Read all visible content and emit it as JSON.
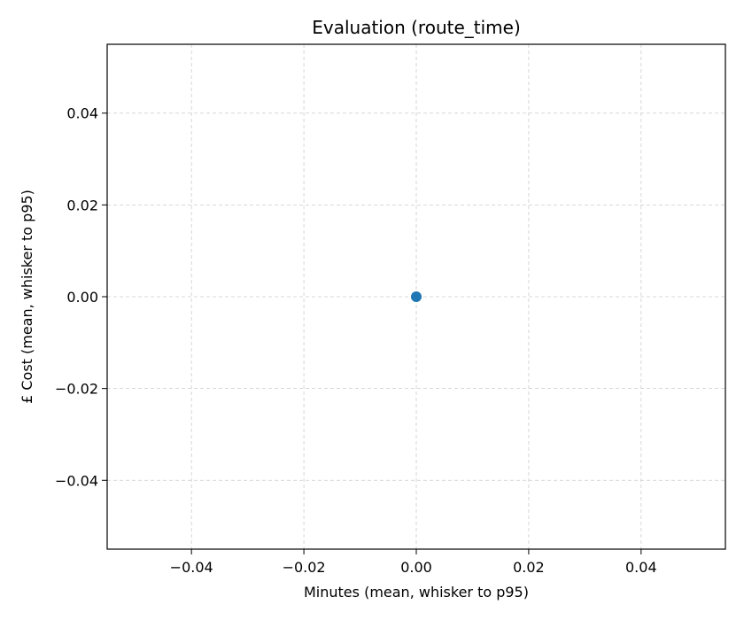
{
  "chart_data": {
    "type": "scatter",
    "title": "Evaluation (route_time)",
    "xlabel": "Minutes (mean, whisker to p95)",
    "ylabel": "£ Cost (mean, whisker to p95)",
    "xlim": [
      -0.055,
      0.055
    ],
    "ylim": [
      -0.055,
      0.055
    ],
    "x_ticks": [
      -0.04,
      -0.02,
      0.0,
      0.02,
      0.04
    ],
    "x_tick_labels": [
      "−0.04",
      "−0.02",
      "0.00",
      "0.02",
      "0.04"
    ],
    "y_ticks": [
      -0.04,
      -0.02,
      0.0,
      0.02,
      0.04
    ],
    "y_tick_labels": [
      "−0.04",
      "−0.02",
      "0.00",
      "0.02",
      "0.04"
    ],
    "grid": true,
    "series": [
      {
        "x": [
          0.0
        ],
        "y": [
          0.0
        ],
        "color": "#1f77b4"
      }
    ]
  }
}
